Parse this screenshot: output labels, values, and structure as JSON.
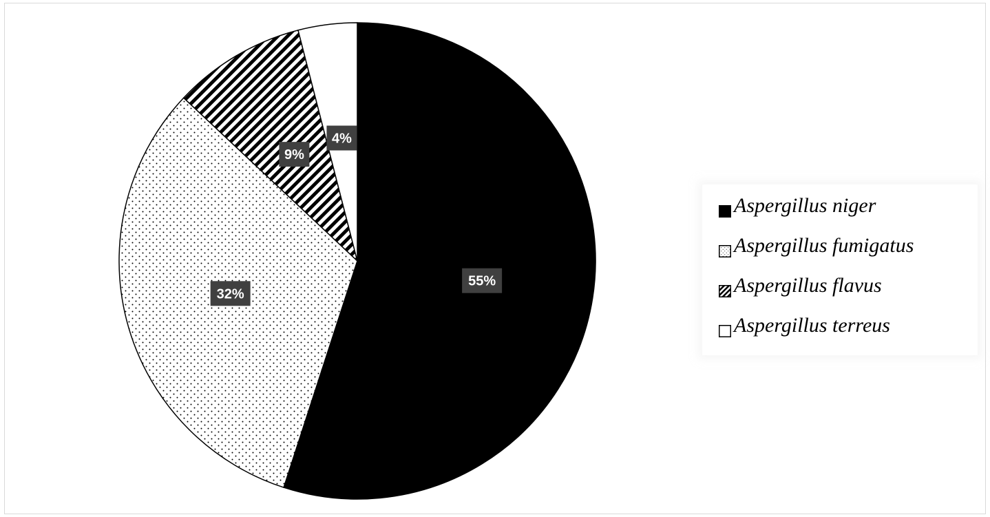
{
  "chart_data": {
    "type": "pie",
    "title": "",
    "start_angle_deg": 0,
    "direction": "clockwise",
    "series": [
      {
        "name": "Aspergillus niger",
        "value": 55,
        "label": "55%",
        "pattern": "solid"
      },
      {
        "name": "Aspergillus fumigatus",
        "value": 32,
        "label": "32%",
        "pattern": "dots"
      },
      {
        "name": "Aspergillus flavus",
        "value": 9,
        "label": "9%",
        "pattern": "diagonal-stripes"
      },
      {
        "name": "Aspergillus terreus",
        "value": 4,
        "label": "4%",
        "pattern": "white"
      }
    ],
    "legend_position": "right",
    "data_label_bg": "#404040",
    "data_label_color": "#ffffff",
    "colors": {
      "fill": "#000000",
      "outline": "#000000",
      "background": "#ffffff"
    }
  }
}
